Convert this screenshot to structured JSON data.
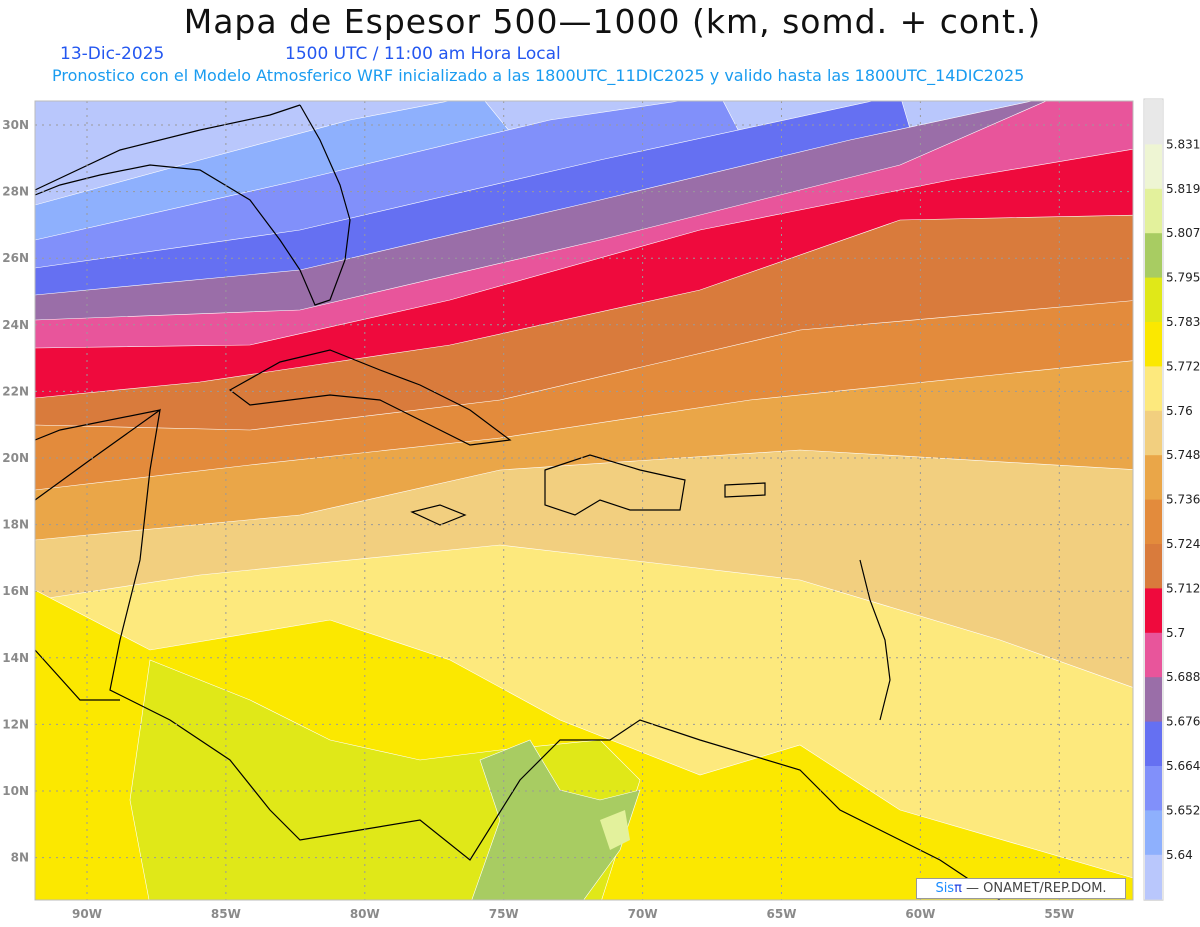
{
  "header": {
    "title": "Mapa de Espesor 500—1000 (km, somd. + cont.)",
    "date": "13-Dic-2025",
    "time": "1500 UTC / 11:00 am Hora Local",
    "description": "Pronostico con el Modelo Atmosferico WRF inicializado a las 1800UTC_11DIC2025 y valido hasta las  1800UTC_14DIC2025"
  },
  "map": {
    "lat_labels": [
      "30N",
      "28N",
      "26N",
      "24N",
      "22N",
      "20N",
      "18N",
      "16N",
      "14N",
      "12N",
      "10N",
      "8N"
    ],
    "lon_labels": [
      "90W",
      "85W",
      "80W",
      "75W",
      "70W",
      "65W",
      "60W",
      "55W"
    ]
  },
  "colorbar": {
    "levels": [
      "5.831",
      "5.819",
      "5.807",
      "5.795",
      "5.783",
      "5.772",
      "5.76",
      "5.748",
      "5.736",
      "5.724",
      "5.712",
      "5.7",
      "5.688",
      "5.676",
      "5.664",
      "5.652",
      "5.64"
    ],
    "colors": [
      "#e8e8e8",
      "#eef5d3",
      "#e3f19c",
      "#a8cc62",
      "#e0e818",
      "#fbe800",
      "#fde97d",
      "#f2cf7f",
      "#eaa648",
      "#e38b3c",
      "#d97b3c",
      "#ef0a3d",
      "#e8559b",
      "#9a6ea8",
      "#6570f2",
      "#8190fa",
      "#8eb0fd",
      "#b9c7fc"
    ]
  },
  "credit": {
    "sis": "Sis",
    "pi": "π",
    "rest": " —  ONAMET/REP.DOM."
  }
}
